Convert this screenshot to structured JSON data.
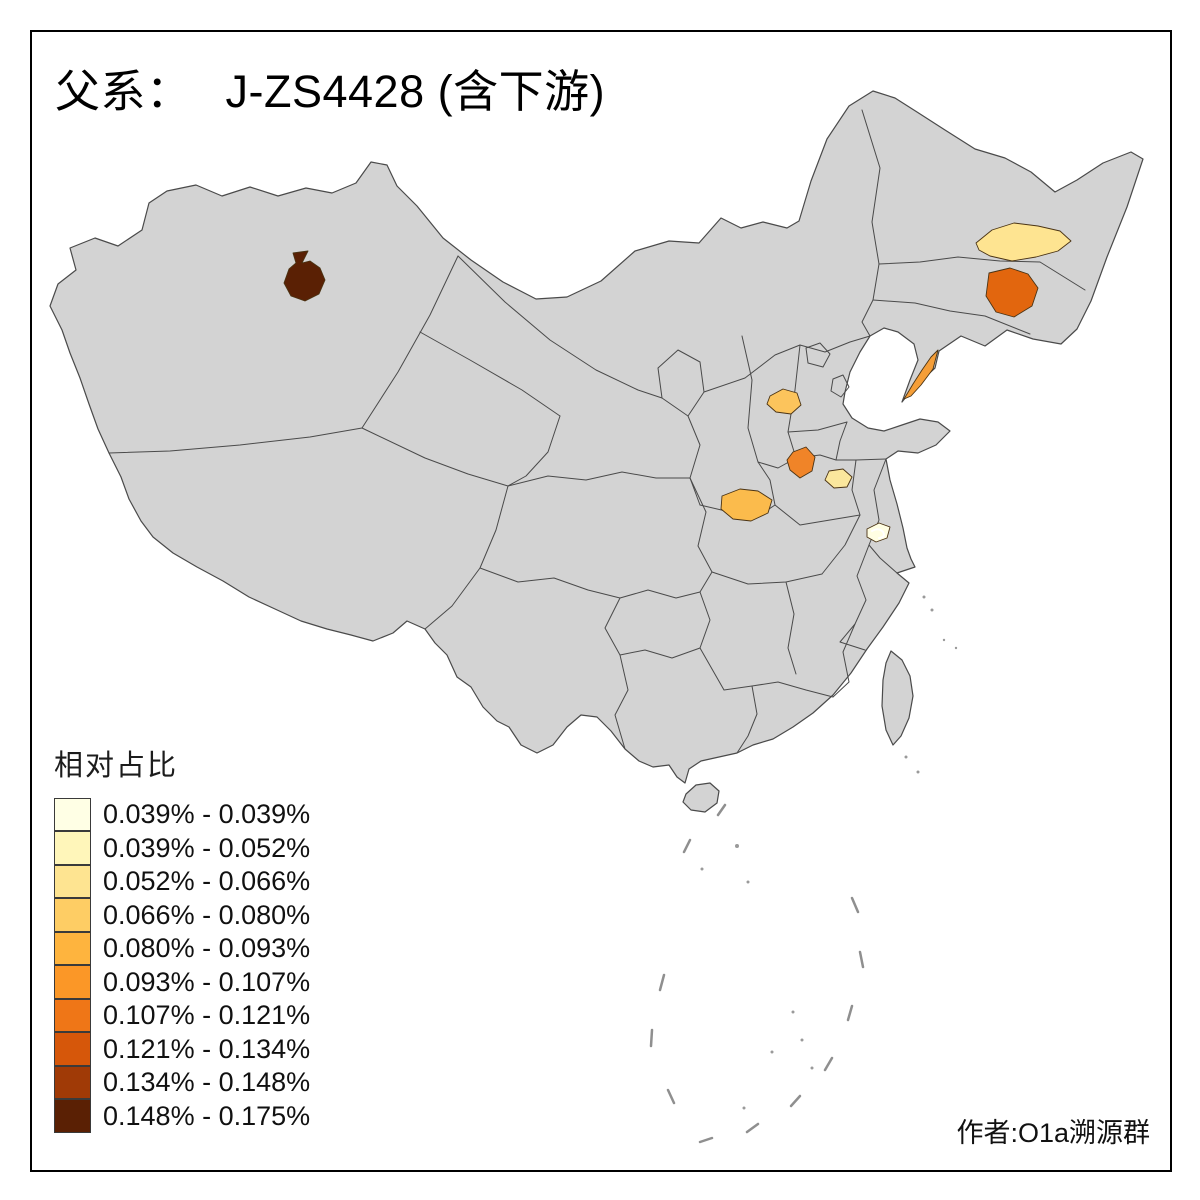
{
  "header": {
    "title_prefix": "父系：",
    "title_main": "J-ZS4428 (含下游)"
  },
  "legend": {
    "title": "相对占比",
    "items": [
      {
        "label": "0.039% - 0.039%",
        "color": "#FFFFE5"
      },
      {
        "label": "0.039% - 0.052%",
        "color": "#FFF6BA"
      },
      {
        "label": "0.052% - 0.066%",
        "color": "#FEE491"
      },
      {
        "label": "0.066% - 0.080%",
        "color": "#FECD64"
      },
      {
        "label": "0.080% - 0.093%",
        "color": "#FEB43E"
      },
      {
        "label": "0.093% - 0.107%",
        "color": "#FB9727"
      },
      {
        "label": "0.107% - 0.121%",
        "color": "#EF7617"
      },
      {
        "label": "0.121% - 0.134%",
        "color": "#D6570A"
      },
      {
        "label": "0.134% - 0.148%",
        "color": "#A03A06"
      },
      {
        "label": "0.148% - 0.175%",
        "color": "#5A2004"
      }
    ]
  },
  "footer": {
    "credit": "作者:O1a溯源群"
  },
  "map": {
    "base_fill": "#d3d3d3",
    "border_color": "#4a4a4a",
    "highlights": [
      {
        "id": "xinjiang-dark-region",
        "color": "#5A2004",
        "bin": "0.148% - 0.175%"
      },
      {
        "id": "heilongjiang-pale-region",
        "color": "#FEE491",
        "bin": "0.052% - 0.066%"
      },
      {
        "id": "jilin-orange-region",
        "color": "#E2660E",
        "bin": "0.107% - 0.121%"
      },
      {
        "id": "liaodong-orange-region",
        "color": "#F59E38",
        "bin": "0.080% - 0.093%"
      },
      {
        "id": "hebei-light-orange-region",
        "color": "#FCC45C",
        "bin": "0.066% - 0.080%"
      },
      {
        "id": "henan-orange-region",
        "color": "#F08428",
        "bin": "0.093% - 0.107%"
      },
      {
        "id": "henan-pale-yellow-region",
        "color": "#FBE79D",
        "bin": "0.039% - 0.052%"
      },
      {
        "id": "shaanxi-golden-region",
        "color": "#FBBB4C",
        "bin": "0.066% - 0.080%"
      },
      {
        "id": "anhui-cream-region",
        "color": "#FFFEE3",
        "bin": "0.039% - 0.039%"
      }
    ]
  }
}
